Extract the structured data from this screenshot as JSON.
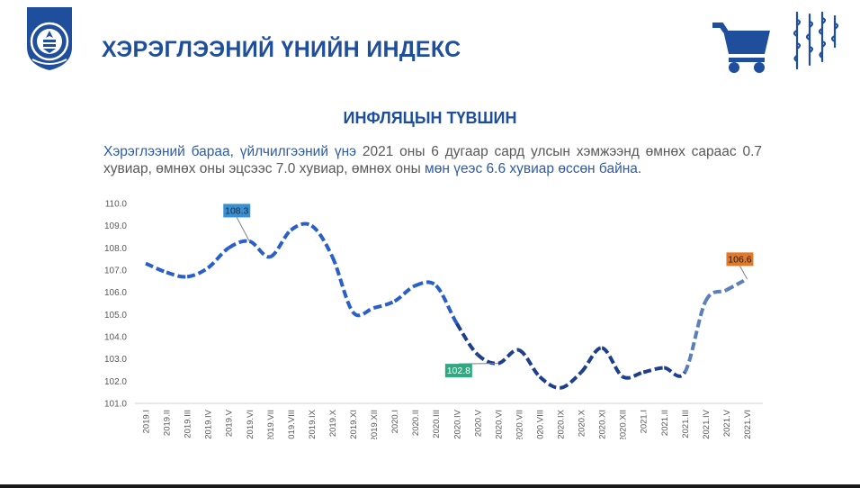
{
  "header": {
    "title": "ХЭРЭГЛЭЭНИЙ ҮНИЙН ИНДЕКС",
    "logo_icon": "state-emblem-icon",
    "cart_icon": "shopping-cart-icon",
    "script_icon": "mongolian-script-icon"
  },
  "colors": {
    "brand": "#1f4e9c",
    "line_dark": "#1f3f8c",
    "line_mid": "#2a5ec8",
    "line_light": "#5b7fb8",
    "label_blue": "#3a8fd0",
    "label_green": "#2eaa80",
    "label_orange": "#e07a2a"
  },
  "chart_data": {
    "type": "line",
    "title": "ИНФЛЯЦЫН ТҮВШИН",
    "description": {
      "part1": "Хэрэглээний бараа, үйлчилгээний үнэ",
      "part2": " 2021 оны 6 дугаар сард улсын хэмжээнд өмнөх сараас 0.7 хувиар, өмнөх оны эцсээс 7.0 хувиар, өмнөх оны ",
      "part3": "мөн үеэс 6.6 хувиар өссөн байна."
    },
    "categories": [
      "2019.I",
      "2019.II",
      "2019.III",
      "2019.IV",
      "2019.V",
      "2019.VI",
      "2019.VII",
      "2019.VIII",
      "2019.IX",
      "2019.X",
      "2019.XI",
      "2019.XII",
      "2020.I",
      "2020.II",
      "2020.III",
      "2020.IV",
      "2020.V",
      "2020.VI",
      "2020.VII",
      "2020.VIII",
      "2020.IX",
      "2020.X",
      "2020.XI",
      "2020.XII",
      "2021.I",
      "2021.II",
      "2021.III",
      "2021.IV",
      "2021.V",
      "2021.VI"
    ],
    "values": [
      107.3,
      106.9,
      106.7,
      107.1,
      108.0,
      108.3,
      107.6,
      108.8,
      109.0,
      107.6,
      105.1,
      105.3,
      105.6,
      106.3,
      106.3,
      104.6,
      103.2,
      102.8,
      103.4,
      102.2,
      101.7,
      102.4,
      103.5,
      102.2,
      102.4,
      102.6,
      102.4,
      105.6,
      106.1,
      106.6
    ],
    "yticks": [
      "101.0",
      "102.0",
      "103.0",
      "104.0",
      "105.0",
      "106.0",
      "107.0",
      "108.0",
      "109.0",
      "110.0"
    ],
    "ylim": [
      101,
      110
    ],
    "annotations": [
      {
        "index": 5,
        "text": "108.3",
        "color": "#3a8fd0",
        "text_color": "#1a2a40"
      },
      {
        "index": 17,
        "text": "102.8",
        "color": "#2eaa80",
        "text_color": "#ffffff"
      },
      {
        "index": 29,
        "text": "106.6",
        "color": "#e07a2a",
        "text_color": "#1a1a1a"
      }
    ],
    "grid": false
  }
}
